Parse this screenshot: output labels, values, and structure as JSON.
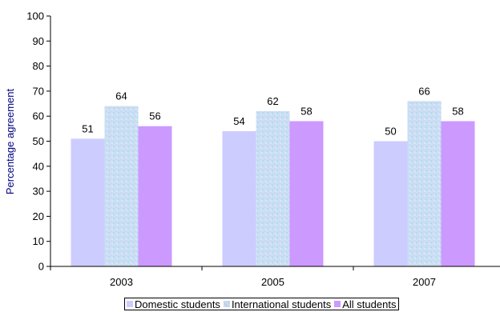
{
  "chart_data": {
    "type": "bar",
    "categories": [
      "2003",
      "2005",
      "2007"
    ],
    "series": [
      {
        "name": "Domestic students",
        "values": [
          51,
          54,
          50
        ],
        "color": "#ccccff"
      },
      {
        "name": "International students",
        "values": [
          64,
          62,
          66
        ],
        "color": "#c4ddf2"
      },
      {
        "name": "All students",
        "values": [
          56,
          58,
          58
        ],
        "color": "#cc99ff"
      }
    ],
    "ylabel": "Percentage agreement",
    "xlabel": "",
    "ylim": [
      0,
      100
    ],
    "yticks": [
      "0",
      "10",
      "20",
      "30",
      "40",
      "50",
      "60",
      "70",
      "80",
      "90",
      "100"
    ],
    "legend_position": "bottom",
    "grid": false
  }
}
